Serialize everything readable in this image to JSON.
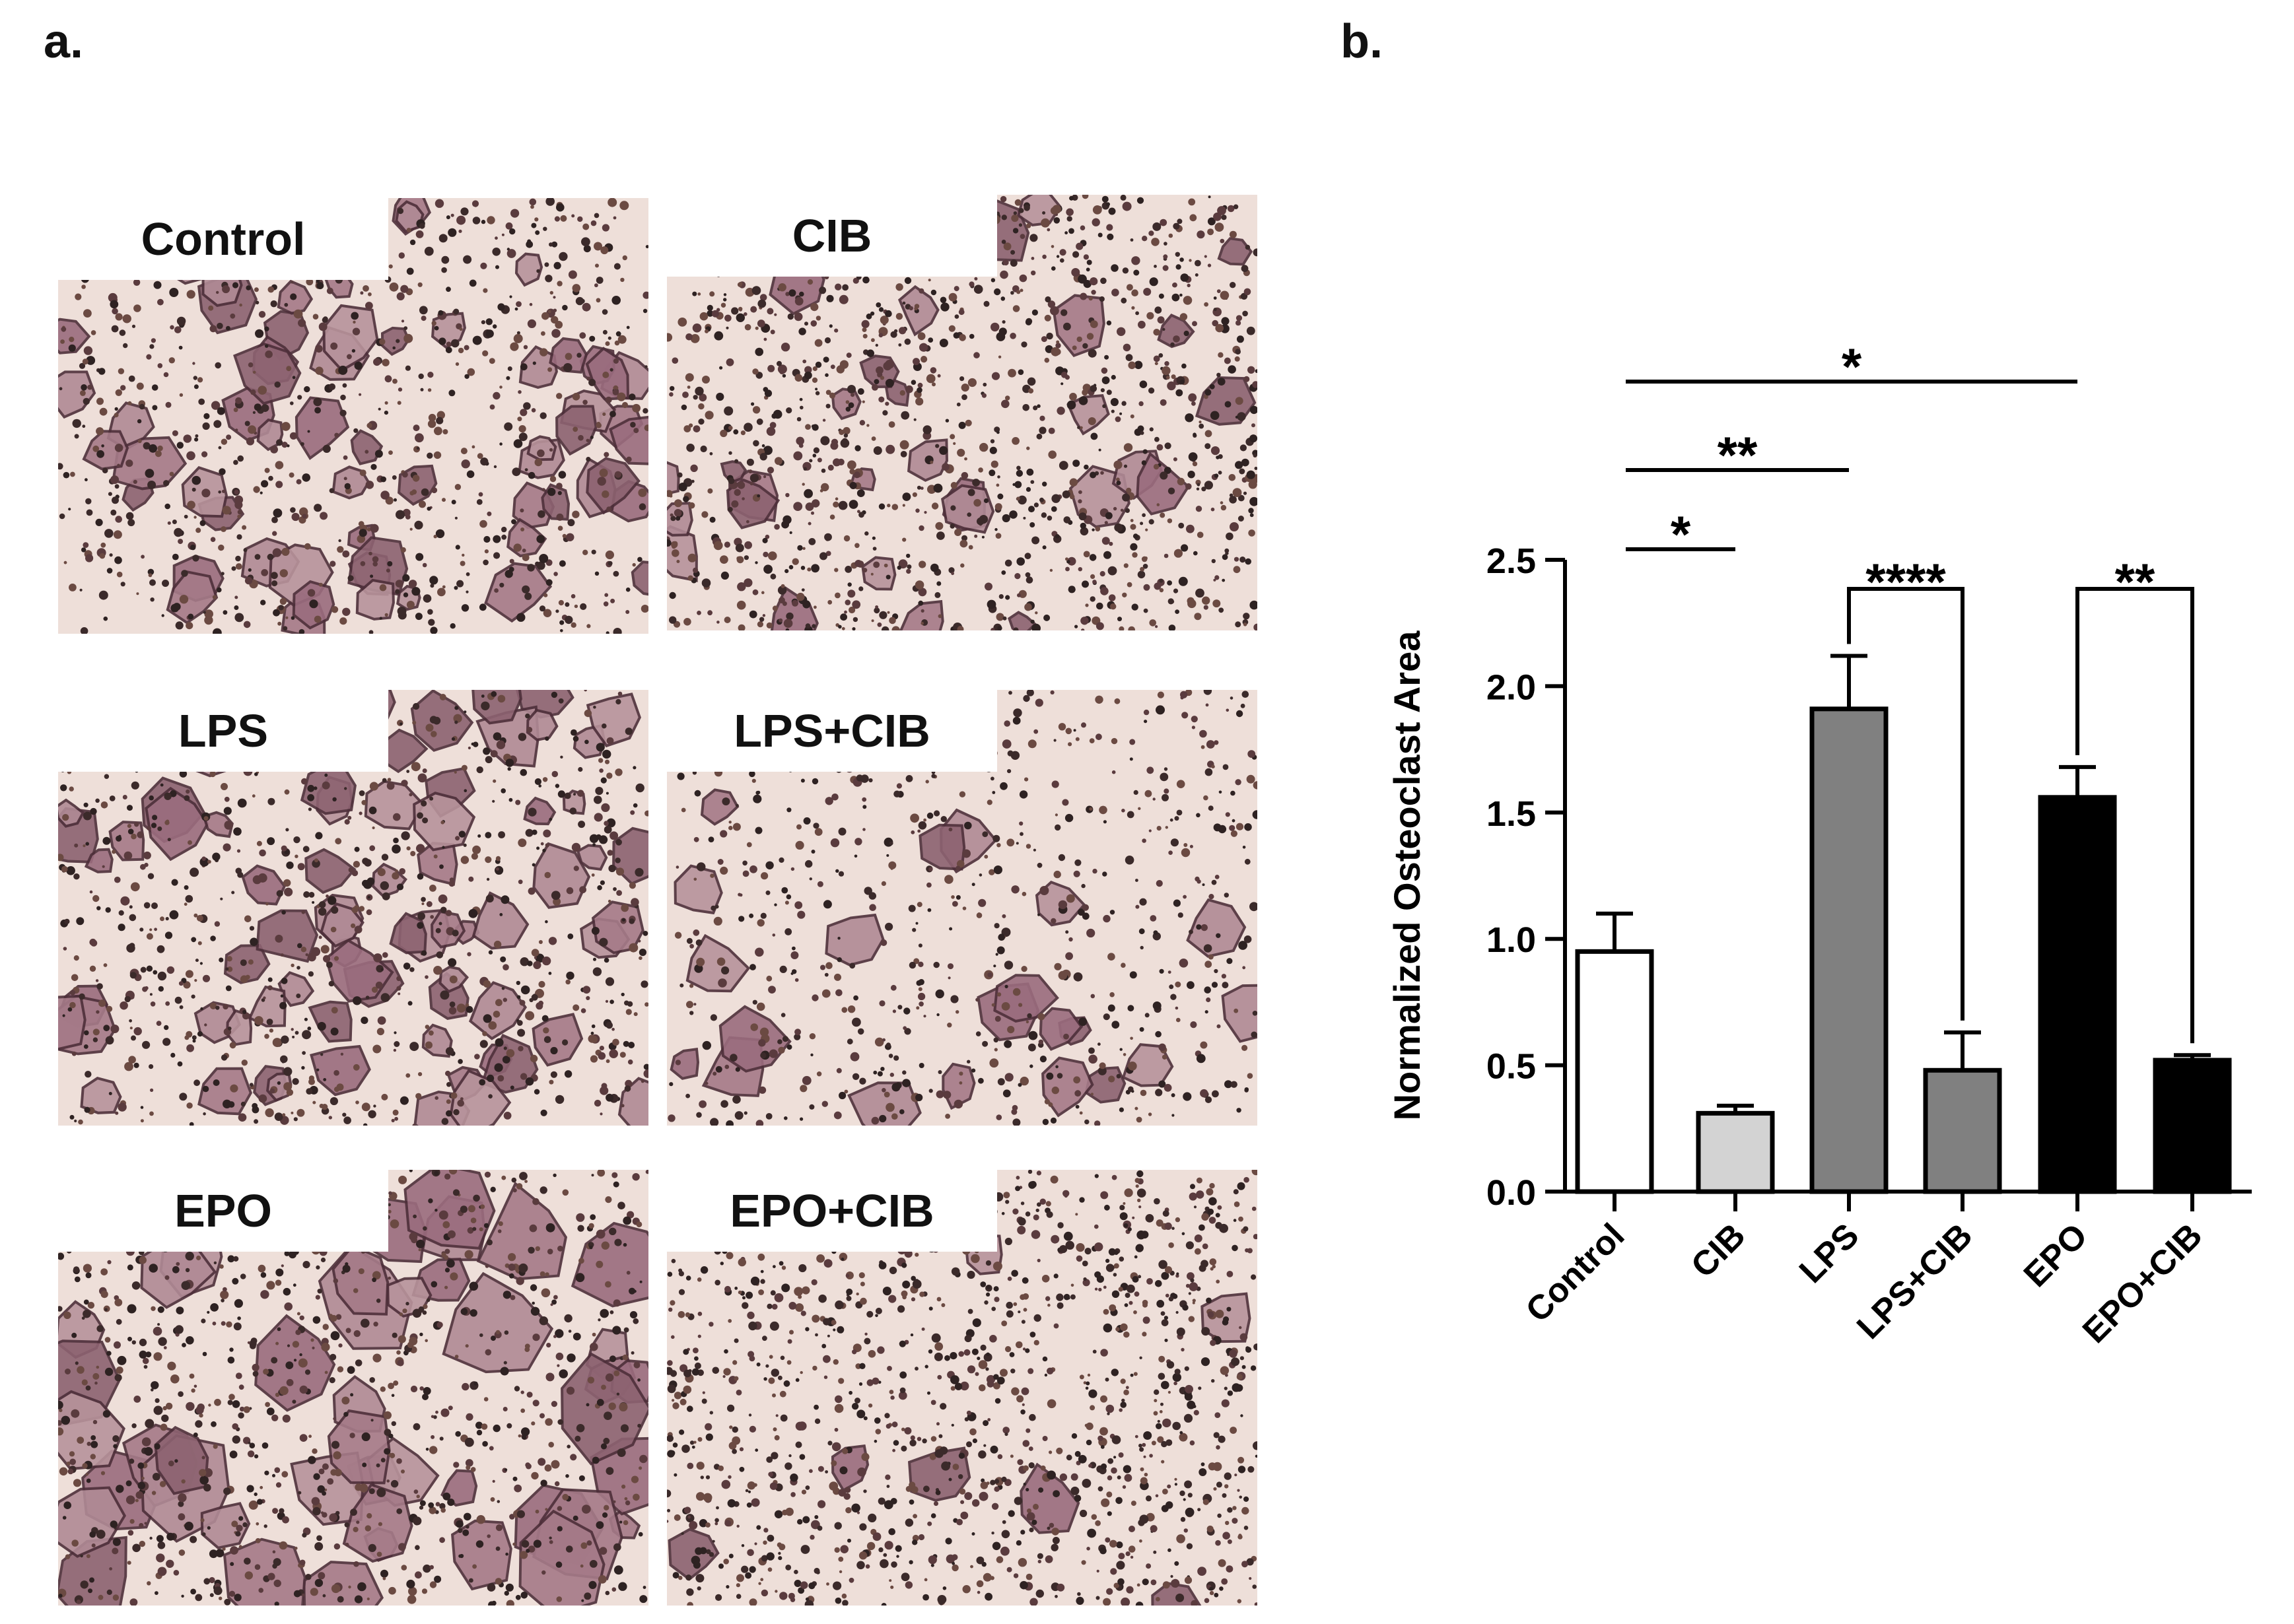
{
  "figure": {
    "panel_a_label": "a.",
    "panel_b_label": "b."
  },
  "micrographs": [
    {
      "label": "Control"
    },
    {
      "label": "CIB"
    },
    {
      "label": "LPS"
    },
    {
      "label": "LPS+CIB"
    },
    {
      "label": "EPO"
    },
    {
      "label": "EPO+CIB"
    }
  ],
  "chart_data": {
    "type": "bar",
    "title": "",
    "xlabel": "",
    "ylabel": "Normalized Osteoclast Area",
    "ylim": [
      0,
      2.5
    ],
    "yticks": [
      "0.0",
      "0.5",
      "1.0",
      "1.5",
      "2.0",
      "2.5"
    ],
    "categories": [
      "Control",
      "CIB",
      "LPS",
      "LPS+CIB",
      "EPO",
      "EPO+CIB"
    ],
    "values": [
      0.95,
      0.31,
      1.91,
      0.48,
      1.56,
      0.52
    ],
    "errors": [
      0.15,
      0.03,
      0.21,
      0.15,
      0.12,
      0.02
    ],
    "colors": [
      "#ffffff",
      "#d3d3d3",
      "#808080",
      "#808080",
      "#000000",
      "#000000"
    ],
    "grid": false,
    "significance": [
      {
        "from": "Control",
        "to": "EPO",
        "label": "*",
        "type": "line"
      },
      {
        "from": "Control",
        "to": "LPS",
        "label": "**",
        "type": "line"
      },
      {
        "from": "Control",
        "to": "CIB",
        "label": "*",
        "type": "line"
      },
      {
        "from": "LPS",
        "to": "LPS+CIB",
        "label": "****",
        "type": "bracket"
      },
      {
        "from": "EPO",
        "to": "EPO+CIB",
        "label": "**",
        "type": "bracket"
      }
    ]
  }
}
